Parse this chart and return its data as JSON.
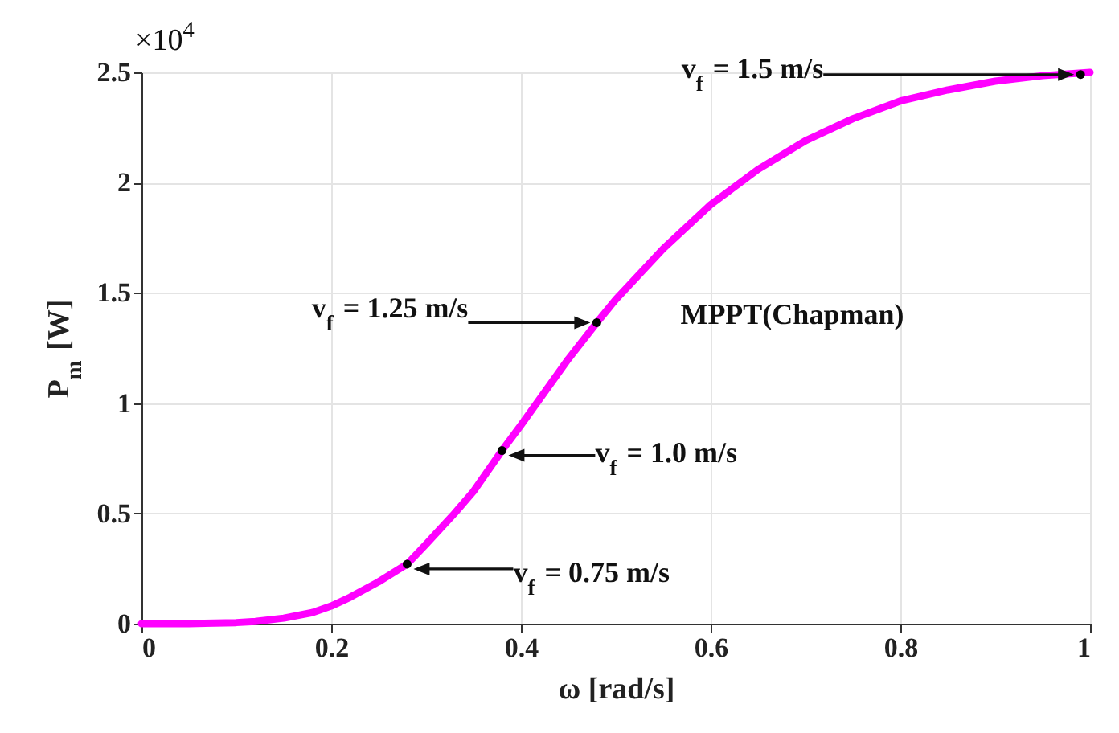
{
  "chart_data": {
    "type": "line",
    "xlabel": "ω [rad/s]",
    "ylabel": "P$_{m}$ [W]",
    "xlim": [
      0,
      1
    ],
    "xticks": [
      0,
      0.2,
      0.4,
      0.6,
      0.8,
      1
    ],
    "ylim": [
      0,
      2.5
    ],
    "yticks": [
      0,
      0.5,
      1,
      1.5,
      2,
      2.5
    ],
    "grid": true,
    "series": [
      {
        "color": "#ff00ff",
        "x": [
          0,
          0.05,
          0.1,
          0.12,
          0.15,
          0.18,
          0.2,
          0.22,
          0.25,
          0.28,
          0.3,
          0.33,
          0.35,
          0.38,
          0.4,
          0.43,
          0.45,
          0.48,
          0.5,
          0.55,
          0.6,
          0.65,
          0.7,
          0.75,
          0.8,
          0.85,
          0.9,
          0.95,
          1
        ],
        "values": [
          0,
          0,
          0.005,
          0.01,
          0.025,
          0.05,
          0.08,
          0.12,
          0.19,
          0.27,
          0.36,
          0.5,
          0.6,
          0.785,
          0.9,
          1.08,
          1.2,
          1.365,
          1.47,
          1.7,
          1.9,
          2.06,
          2.19,
          2.29,
          2.37,
          2.42,
          2.46,
          2.485,
          2.5
        ]
      },
      {
        "type": "scatter",
        "color": "#000000",
        "x": [
          0.28,
          0.38,
          0.48,
          0.99
        ],
        "values": [
          0.27,
          0.785,
          1.365,
          2.49
        ]
      }
    ],
    "annotations": [
      "v$_{f}$ = 0.75 m/s",
      "v$_{f}$ = 1.0 m/s",
      "v$_{f}$ = 1.25 m/s",
      "v$_{f}$ = 1.5 m/s",
      "MPPT(Chapman)",
      "×10$^{4}$"
    ]
  }
}
